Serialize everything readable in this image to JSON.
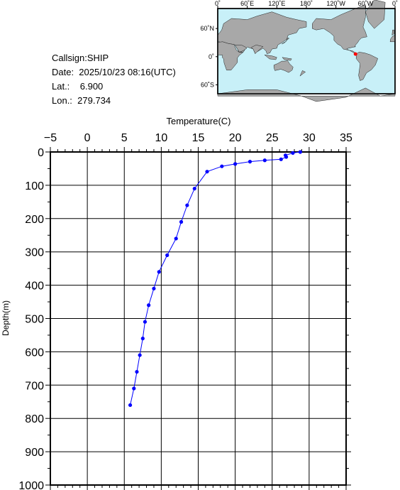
{
  "info": {
    "callsign": "Callsign:SHIP",
    "date": "Date:  2025/10/23 08:16(UTC)",
    "lat": "Lat.:    6.900",
    "lon": "Lon.:  279.734"
  },
  "map": {
    "lon_labels": [
      "0˚",
      "60˚E",
      "120˚E",
      "180˚",
      "120˚W",
      "60˚W",
      "0˚"
    ],
    "lat_labels": [
      "60˚N",
      "0˚",
      "60˚S"
    ],
    "station": {
      "lat": 6.9,
      "lon": 279.734
    },
    "colors": {
      "ocean": "#c8f0f8",
      "land": "#a8a8a8",
      "marker": "#ff0000"
    }
  },
  "chart_data": {
    "type": "line",
    "xlabel": "Temperature(C)",
    "ylabel": "Depth(m)",
    "xlim": [
      -5,
      35
    ],
    "ylim": [
      0,
      1000
    ],
    "y_inverted": true,
    "x_ticks": [
      -5,
      0,
      5,
      10,
      15,
      20,
      25,
      30,
      35
    ],
    "y_ticks": [
      0,
      100,
      200,
      300,
      400,
      500,
      600,
      700,
      800,
      900,
      1000
    ],
    "color": "#0000ff",
    "series": [
      {
        "temperature": [
          28.8,
          27.8,
          26.8,
          26.9,
          26.2,
          24.0,
          22.0,
          20.0,
          18.2,
          16.2,
          14.5,
          13.5,
          12.7,
          12.0,
          10.8,
          9.7,
          9.0,
          8.3,
          7.8,
          7.5,
          7.1,
          6.7,
          6.3,
          5.8
        ],
        "depth": [
          0,
          3,
          10,
          15,
          22,
          25,
          29,
          36,
          43,
          59,
          110,
          160,
          210,
          260,
          310,
          360,
          410,
          460,
          510,
          560,
          610,
          660,
          710,
          760
        ]
      }
    ]
  }
}
